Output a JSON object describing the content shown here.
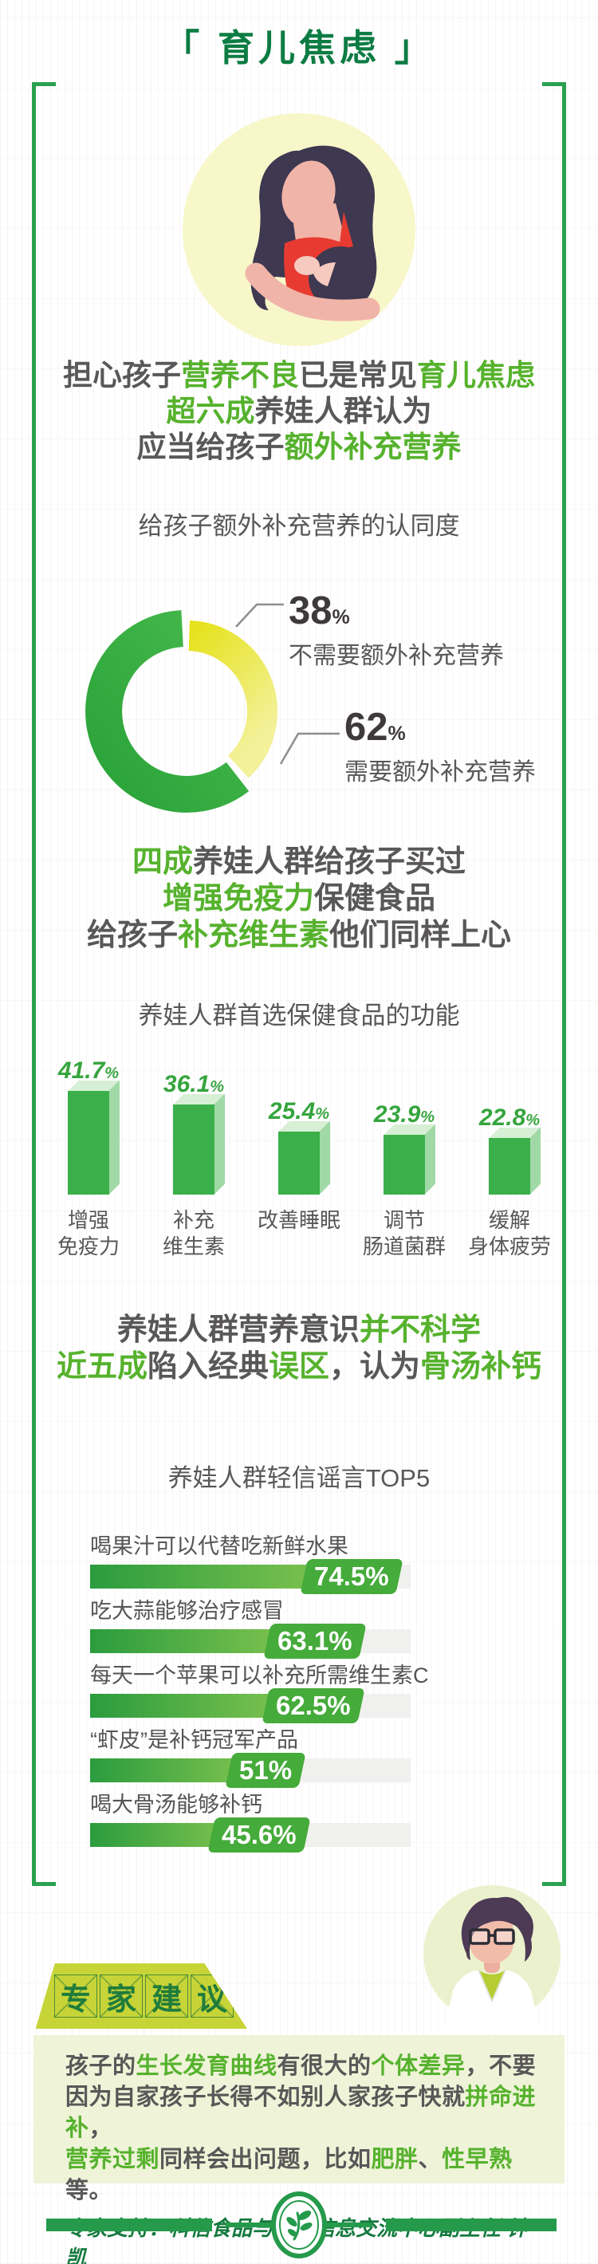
{
  "page_title": "「 育儿焦虑 」",
  "colors": {
    "accent_green": "#56b22d",
    "dark_green": "#0c7c43",
    "frame_green": "#2aa14f",
    "donut_yellow": "#e6e322",
    "donut_green": "#2fa53e",
    "text_gray": "#595757"
  },
  "icons": {
    "hero": "mother-breastfeeding-illustration",
    "expert": "doctor-expert-illustration",
    "logo": "leaf-branch-logo"
  },
  "intro": {
    "lines": [
      [
        {
          "t": "担心孩子"
        },
        {
          "t": "营养不良",
          "g": 1
        },
        {
          "t": "已是常见"
        },
        {
          "t": "育儿焦虑",
          "g": 1
        }
      ],
      [
        {
          "t": "超六成",
          "g": 1
        },
        {
          "t": "养娃人群认为"
        }
      ],
      [
        {
          "t": "应当给孩子"
        },
        {
          "t": "额外补充营养",
          "g": 1
        }
      ]
    ]
  },
  "donut": {
    "subtitle": "给孩子额外补充营养的认同度",
    "no_label": {
      "value": "38",
      "unit": "%",
      "text": "不需要额外补充营养"
    },
    "yes_label": {
      "value": "62",
      "unit": "%",
      "text": "需要额外补充营养"
    }
  },
  "purchase": {
    "lines": [
      [
        {
          "t": "四成",
          "g": 1
        },
        {
          "t": "养娃人群给孩子买过"
        }
      ],
      [
        {
          "t": "增强免疫力",
          "g": 1
        },
        {
          "t": "保健食品"
        }
      ],
      [
        {
          "t": "给孩子"
        },
        {
          "t": "补充维生素",
          "g": 1
        },
        {
          "t": "他们同样上心"
        }
      ]
    ]
  },
  "barchart": {
    "subtitle": "养娃人群首选保健食品的功能",
    "unit": "%",
    "bars": [
      {
        "value": 41.7,
        "display": "41.7",
        "label1": "增强",
        "label2": "免疫力"
      },
      {
        "value": 36.1,
        "display": "36.1",
        "label1": "补充",
        "label2": "维生素"
      },
      {
        "value": 25.4,
        "display": "25.4",
        "label1": "改善睡眠",
        "label2": ""
      },
      {
        "value": 23.9,
        "display": "23.9",
        "label1": "调节",
        "label2": "肠道菌群"
      },
      {
        "value": 22.8,
        "display": "22.8",
        "label1": "缓解",
        "label2": "身体疲劳"
      }
    ]
  },
  "misconception": {
    "lines": [
      [
        {
          "t": "养娃人群营养意识"
        },
        {
          "t": "并不科学",
          "g": 1
        }
      ],
      [
        {
          "t": "近五成",
          "g": 1
        },
        {
          "t": "陷入经典"
        },
        {
          "t": "误区",
          "g": 1
        },
        {
          "t": "，认为"
        },
        {
          "t": "骨汤补钙",
          "g": 1
        }
      ]
    ]
  },
  "top5": {
    "title": "养娃人群轻信谣言TOP5",
    "items": [
      {
        "label": "喝果汁可以代替吃新鲜水果",
        "value": "74.5%",
        "pct": 74.5
      },
      {
        "label": "吃大蒜能够治疗感冒",
        "value": "63.1%",
        "pct": 63.1
      },
      {
        "label": "每天一个苹果可以补充所需维生素C",
        "value": "62.5%",
        "pct": 62.5
      },
      {
        "label": "“虾皮”是补钙冠军产品",
        "value": "51%",
        "pct": 51
      },
      {
        "label": "喝大骨汤能够补钙",
        "value": "45.6%",
        "pct": 45.6
      }
    ]
  },
  "expert": {
    "banner_chars": [
      "专",
      "家",
      "建",
      "议"
    ],
    "advice_lines": [
      [
        {
          "t": "孩子的"
        },
        {
          "t": "生长发育曲线",
          "g": 1
        },
        {
          "t": "有很大的"
        },
        {
          "t": "个体差异",
          "g": 1
        },
        {
          "t": "，不要"
        }
      ],
      [
        {
          "t": "因为自家孩子长得不如别人家孩子快就"
        },
        {
          "t": "拼命进补",
          "g": 1
        },
        {
          "t": "，"
        }
      ],
      [
        {
          "t": "营养过剩",
          "g": 1
        },
        {
          "t": "同样会出问题，比如"
        },
        {
          "t": "肥胖",
          "g": 1
        },
        {
          "t": "、"
        },
        {
          "t": "性早熟",
          "g": 1
        },
        {
          "t": "等。"
        }
      ]
    ],
    "support": "专家支持：科信食品与营养信息交流中心副主任  钟凯"
  },
  "chart_data": [
    {
      "type": "pie",
      "title": "给孩子额外补充营养的认同度",
      "labels": [
        "需要额外补充营养",
        "不需要额外补充营养"
      ],
      "values": [
        62,
        38
      ],
      "unit": "%",
      "colors": [
        "#2fa53e",
        "#e6e322"
      ],
      "style": "donut"
    },
    {
      "type": "bar",
      "title": "养娃人群首选保健食品的功能",
      "categories": [
        "增强免疫力",
        "补充维生素",
        "改善睡眠",
        "调节肠道菌群",
        "缓解身体疲劳"
      ],
      "values": [
        41.7,
        36.1,
        25.4,
        23.9,
        22.8
      ],
      "unit": "%",
      "style": "3d-green-columns"
    },
    {
      "type": "bar",
      "orientation": "horizontal",
      "title": "养娃人群轻信谣言TOP5",
      "categories": [
        "喝果汁可以代替吃新鲜水果",
        "吃大蒜能够治疗感冒",
        "每天一个苹果可以补充所需维生素C",
        "“虾皮”是补钙冠军产品",
        "喝大骨汤能够补钙"
      ],
      "values": [
        74.5,
        63.1,
        62.5,
        51,
        45.6
      ],
      "unit": "%",
      "style": "green-gradient-bars-with-badges"
    }
  ]
}
